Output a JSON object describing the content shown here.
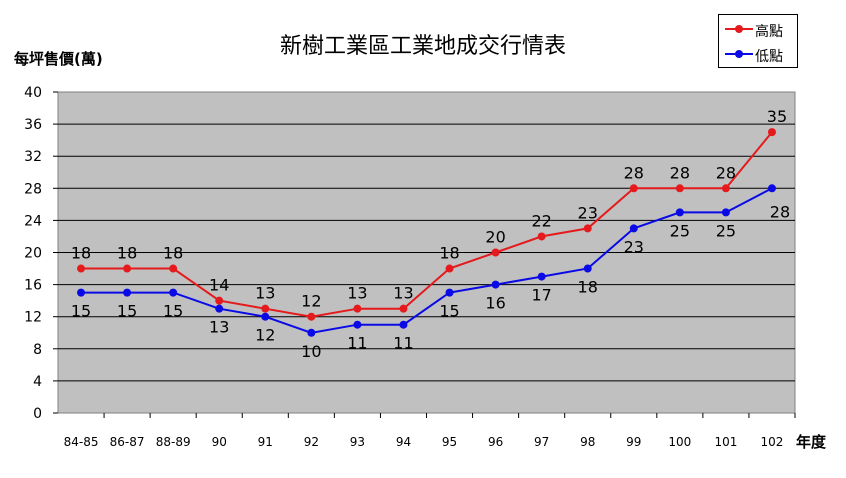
{
  "chart_data": {
    "type": "line",
    "title": "新樹工業區工業地成交行情表",
    "ylabel": "每坪售價(萬)",
    "xlabel": "年度",
    "categories": [
      "84-85",
      "86-87",
      "88-89",
      "90",
      "91",
      "92",
      "93",
      "94",
      "95",
      "96",
      "97",
      "98",
      "99",
      "100",
      "101",
      "102"
    ],
    "ylim": [
      0,
      40
    ],
    "yticks": [
      0,
      4,
      8,
      12,
      16,
      20,
      24,
      28,
      32,
      36,
      40
    ],
    "grid": true,
    "legend": "top-right",
    "series": [
      {
        "name": "高點",
        "color": "#e41a1c",
        "values": [
          18,
          18,
          18,
          14,
          13,
          12,
          13,
          13,
          18,
          20,
          22,
          23,
          28,
          28,
          28,
          35
        ]
      },
      {
        "name": "低點",
        "color": "#0a0ae6",
        "values": [
          15,
          15,
          15,
          13,
          12,
          10,
          11,
          11,
          15,
          16,
          17,
          18,
          23,
          25,
          25,
          28
        ]
      }
    ]
  }
}
